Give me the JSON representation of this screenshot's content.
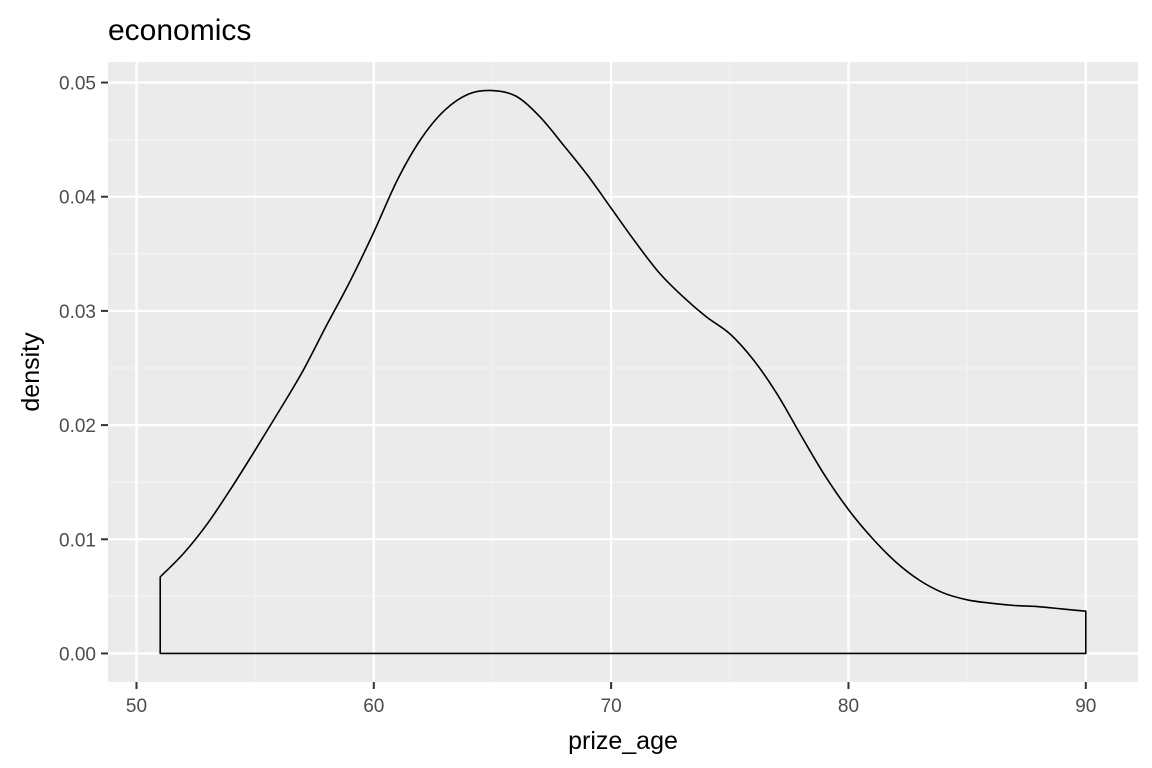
{
  "chart_data": {
    "type": "area",
    "title": "economics",
    "xlabel": "prize_age",
    "ylabel": "density",
    "xlim": [
      48.8,
      92.2
    ],
    "ylim": [
      -0.0025,
      0.0518
    ],
    "x_ticks": [
      50,
      60,
      70,
      80,
      90
    ],
    "x_tick_labels": [
      "50",
      "60",
      "70",
      "80",
      "90"
    ],
    "y_ticks": [
      0.0,
      0.01,
      0.02,
      0.03,
      0.04,
      0.05
    ],
    "y_tick_labels": [
      "0.00",
      "0.01",
      "0.02",
      "0.03",
      "0.04",
      "0.05"
    ],
    "grid": true,
    "series": [
      {
        "x": [
          51,
          52,
          53,
          54,
          55,
          56,
          57,
          58,
          59,
          60,
          61,
          62,
          63,
          64,
          65,
          66,
          67,
          68,
          69,
          70,
          71,
          72,
          73,
          74,
          75,
          76,
          77,
          78,
          79,
          80,
          81,
          82,
          83,
          84,
          85,
          86,
          87,
          88,
          89,
          90
        ],
        "y": [
          0.0067,
          0.0088,
          0.0114,
          0.0145,
          0.0178,
          0.0212,
          0.0247,
          0.0287,
          0.0326,
          0.0369,
          0.0415,
          0.0451,
          0.0476,
          0.049,
          0.0493,
          0.0488,
          0.047,
          0.0445,
          0.0419,
          0.039,
          0.0361,
          0.0334,
          0.0313,
          0.0295,
          0.028,
          0.0257,
          0.0227,
          0.0191,
          0.0156,
          0.0126,
          0.0101,
          0.008,
          0.0064,
          0.0053,
          0.0047,
          0.0044,
          0.0042,
          0.0041,
          0.0039,
          0.0037
        ]
      }
    ],
    "colors": {
      "panel": "#ebebeb",
      "grid_major": "#ffffff",
      "grid_minor": "#f5f5f5",
      "outline": "#000000",
      "fill": "none",
      "tick_label": "#4d4d4d",
      "tick_mark": "#333333"
    }
  }
}
